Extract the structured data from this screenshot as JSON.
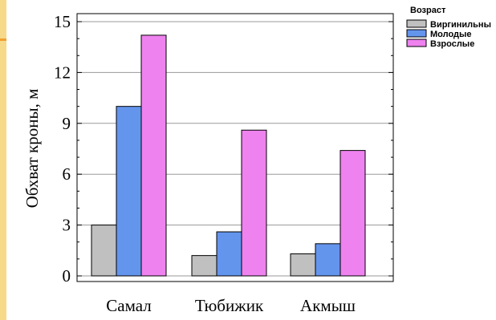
{
  "chart_data": {
    "type": "bar",
    "categories": [
      "Самал",
      "Тюбижик",
      "Акмыш"
    ],
    "series": [
      {
        "name": "Виргинильны",
        "color": "#c0c0c0",
        "values": [
          3.0,
          1.2,
          1.3
        ]
      },
      {
        "name": "Молодые",
        "color": "#6495ed",
        "values": [
          10.0,
          2.6,
          1.9
        ]
      },
      {
        "name": "Взрослые",
        "color": "#ee82ee",
        "values": [
          14.2,
          8.6,
          7.4
        ]
      }
    ],
    "title": "",
    "xlabel": "",
    "ylabel": "Обхват кроны, м",
    "ylim": [
      0,
      15
    ],
    "yticks": [
      "0",
      "3",
      "6",
      "9",
      "12",
      "15"
    ],
    "grid": true,
    "legend_title": "Возраст",
    "legend_position": "top-right"
  }
}
